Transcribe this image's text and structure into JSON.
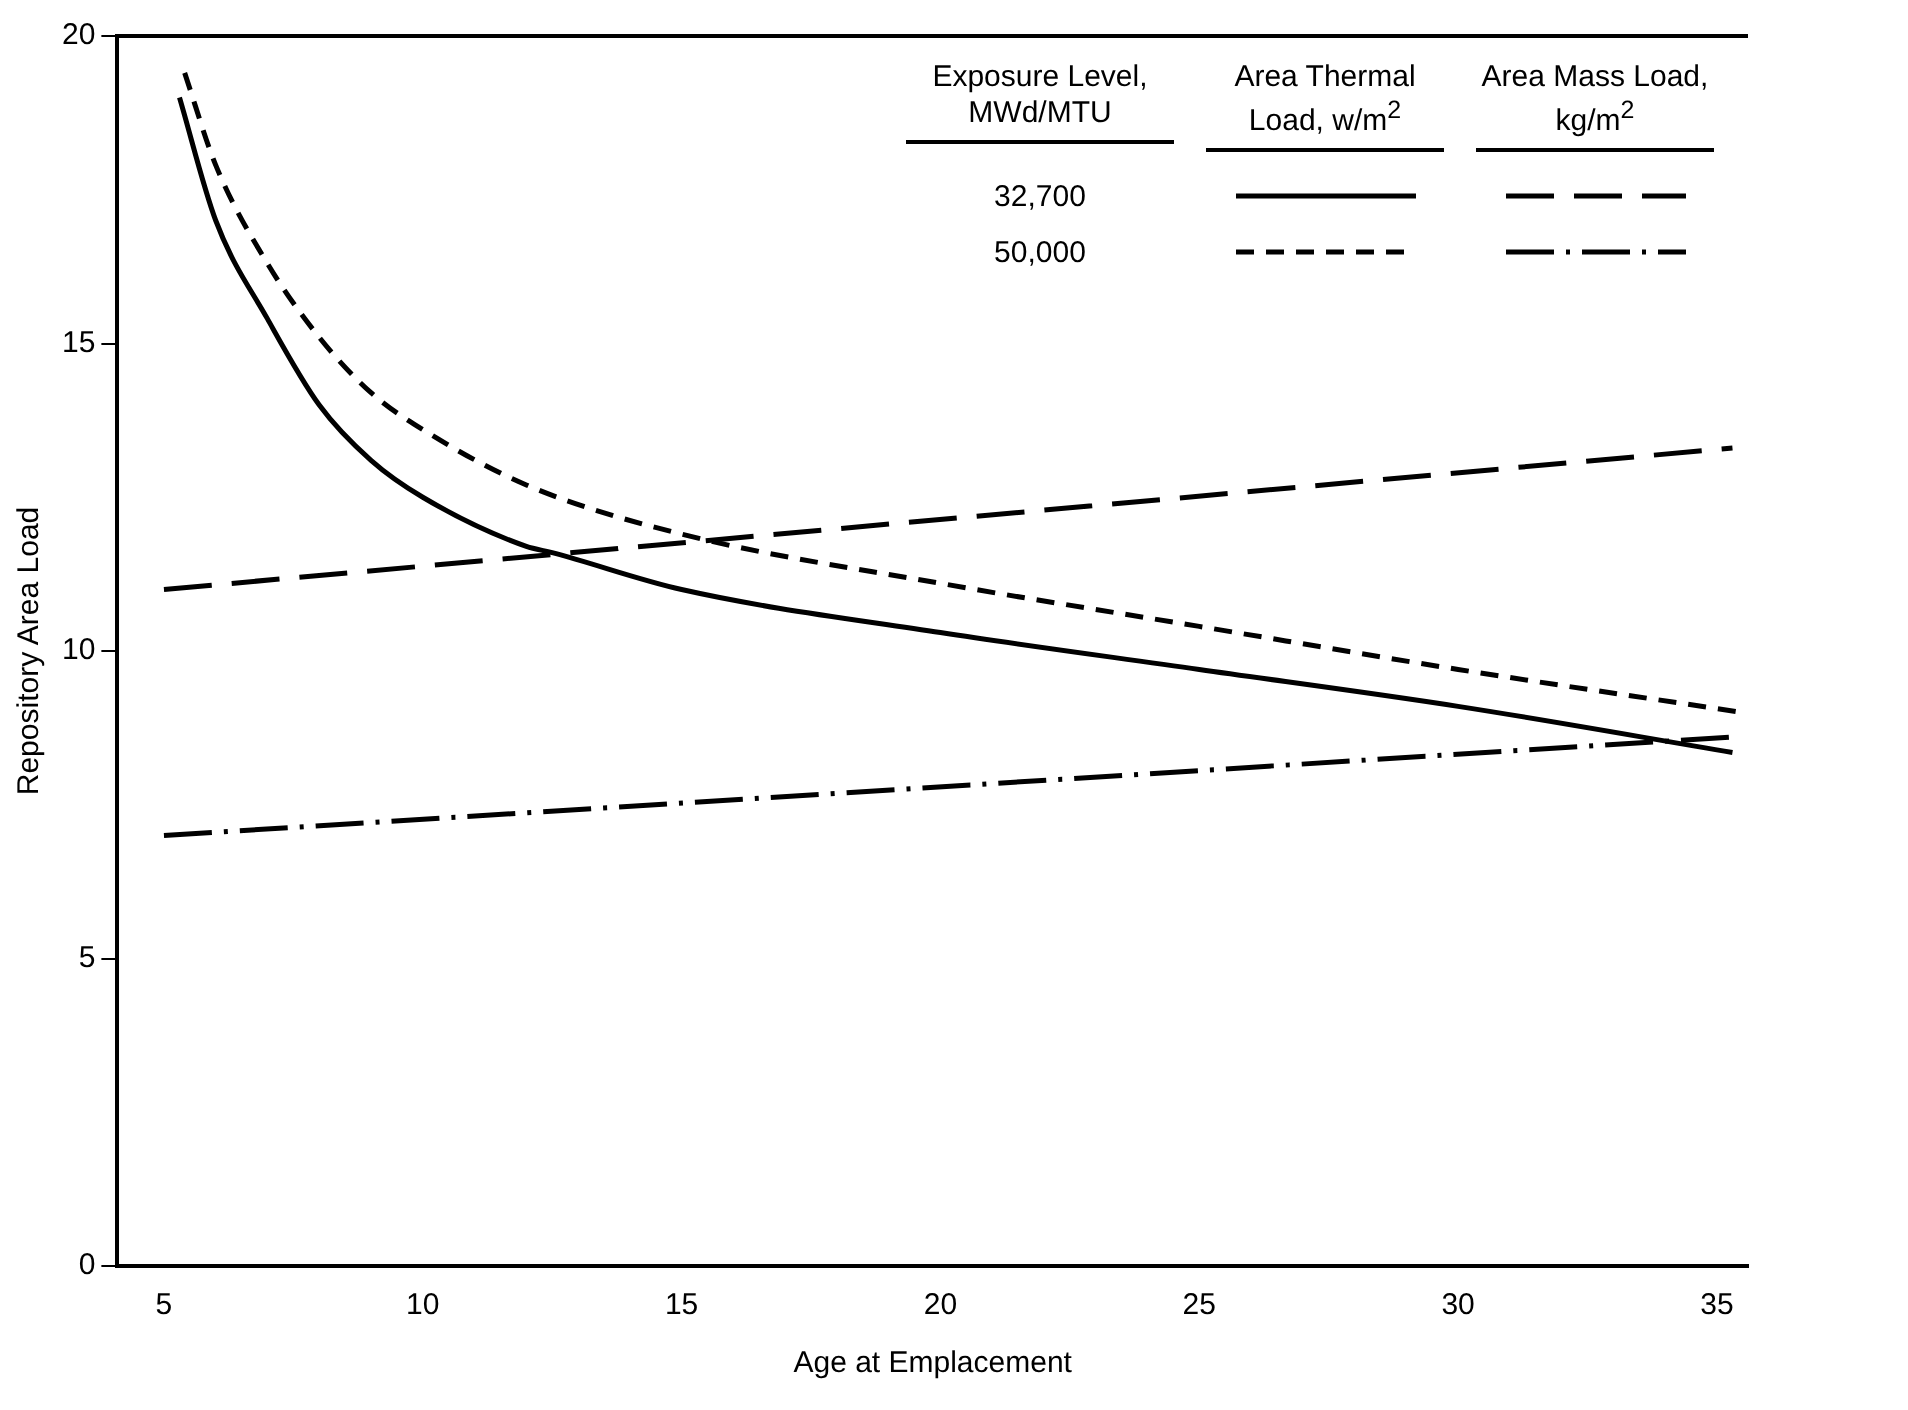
{
  "chart_data": {
    "type": "line",
    "xlabel": "Age at Emplacement",
    "ylabel": "Repository Area Load",
    "xlim": [
      4.1,
      35.6
    ],
    "ylim": [
      0,
      20
    ],
    "xticks": [
      5,
      10,
      15,
      20,
      25,
      30,
      35
    ],
    "yticks": [
      0,
      5,
      10,
      15,
      20
    ],
    "grid": false,
    "legend": false,
    "marker": "none",
    "annotations": [
      "Exposure Level, MWd/MTU",
      "Area Thermal Load, w/m$^{2}$",
      "Area Mass Load, kg/m$^{2}$",
      "32,700",
      "50,000"
    ],
    "series": [
      {
        "color": "#000000",
        "line_style": "solid",
        "x": [
          5.3,
          6,
          7,
          8,
          9,
          10,
          12,
          12.5,
          15,
          20,
          25,
          30,
          35.3
        ],
        "values": [
          19.0,
          17.0,
          15.4,
          14.0,
          13.1,
          12.5,
          11.7,
          11.6,
          11.0,
          10.3,
          9.7,
          9.1,
          8.35
        ]
      },
      {
        "color": "#000000",
        "line_style": "dashed",
        "x": [
          5.4,
          6,
          7,
          8,
          9,
          10,
          12,
          15,
          20,
          25,
          30,
          35.5
        ],
        "values": [
          19.4,
          17.9,
          16.3,
          15.1,
          14.2,
          13.6,
          12.7,
          11.9,
          11.1,
          10.4,
          9.7,
          9.0
        ]
      },
      {
        "color": "#000000",
        "line_style": "longdash",
        "x": [
          5,
          35.3
        ],
        "values": [
          11.0,
          13.3
        ]
      },
      {
        "color": "#000000",
        "line_style": "dashdot",
        "x": [
          5,
          35.3
        ],
        "values": [
          7.0,
          8.6
        ]
      }
    ]
  }
}
